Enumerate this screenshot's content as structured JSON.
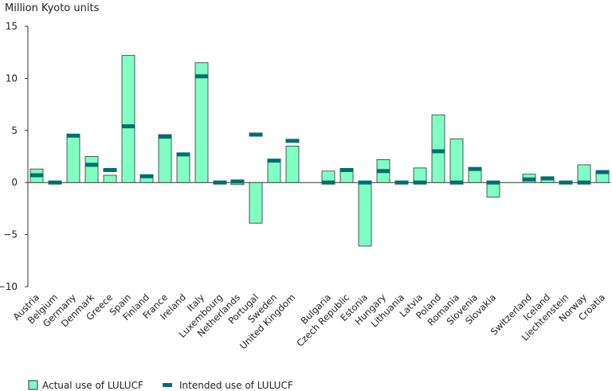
{
  "chart_data": {
    "type": "bar",
    "ylabel": "Million Kyoto units",
    "ylim": [
      -10,
      15
    ],
    "yticks": [
      15,
      10,
      5,
      0,
      -5,
      -10
    ],
    "groups": [
      [
        "Austria",
        "Belgium",
        "Germany",
        "Denmark",
        "Greece",
        "Spain",
        "Finland",
        "France",
        "Ireland",
        "Italy",
        "Luxembourg",
        "Netherlands",
        "Portugal",
        "Sweden",
        "United Kingdom"
      ],
      [
        "Bulgaria",
        "Czech Republic",
        "Estonia",
        "Hungary",
        "Lithuania",
        "Latvia",
        "Poland",
        "Romania",
        "Slovenia",
        "Slovakia"
      ],
      [
        "Switzerland",
        "Iceland",
        "Liechtenstein",
        "Norway",
        "Croatia"
      ]
    ],
    "categories": [
      "Austria",
      "Belgium",
      "Germany",
      "Denmark",
      "Greece",
      "Spain",
      "Finland",
      "France",
      "Ireland",
      "Italy",
      "Luxembourg",
      "Netherlands",
      "Portugal",
      "Sweden",
      "United Kingdom",
      "Bulgaria",
      "Czech Republic",
      "Estonia",
      "Hungary",
      "Lithuania",
      "Latvia",
      "Poland",
      "Romania",
      "Slovenia",
      "Slovakia",
      "Switzerland",
      "Iceland",
      "Liechtenstein",
      "Norway",
      "Croatia"
    ],
    "series": [
      {
        "name": "Actual use of LULUCF",
        "kind": "bar",
        "color": "#7fffc4",
        "values": [
          1.3,
          0.0,
          4.6,
          2.5,
          0.7,
          12.2,
          0.5,
          4.6,
          2.8,
          11.5,
          0.0,
          -0.2,
          -3.9,
          2.2,
          3.5,
          1.1,
          1.3,
          -6.1,
          2.2,
          0.0,
          1.4,
          6.5,
          4.2,
          1.4,
          -1.4,
          0.8,
          0.5,
          0.0,
          1.7,
          1.0
        ]
      },
      {
        "name": "Intended use of LULUCF",
        "kind": "marker",
        "color": "#006e6e",
        "values": [
          0.7,
          0.0,
          4.5,
          1.7,
          1.2,
          5.4,
          0.6,
          4.4,
          2.7,
          10.2,
          0.0,
          0.1,
          4.6,
          2.1,
          4.0,
          0.0,
          1.2,
          0.0,
          1.1,
          0.0,
          0.0,
          3.0,
          0.0,
          1.3,
          0.0,
          0.3,
          0.4,
          0.0,
          0.0,
          1.0
        ]
      }
    ],
    "legend": [
      "Actual use of LULUCF",
      "Intended use of LULUCF"
    ],
    "legend_position": "bottom-left",
    "grid": false
  }
}
